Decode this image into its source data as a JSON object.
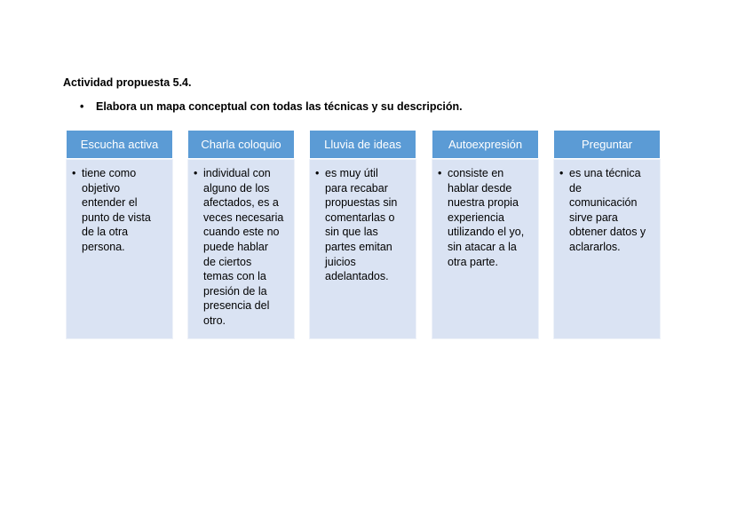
{
  "title": "Actividad propuesta 5.4.",
  "instruction": "Elabora un mapa conceptual con todas las técnicas y su descripción.",
  "columns": [
    {
      "header": "Escucha activa",
      "lines": [
        "tiene como",
        "objetivo",
        "entender el",
        "punto de vista",
        "de la otra",
        "persona."
      ]
    },
    {
      "header": "Charla coloquio",
      "lines": [
        "individual con",
        "alguno de los",
        "afectados, es a",
        "veces necesaria",
        "cuando este no",
        "puede hablar",
        "de ciertos",
        "temas con la",
        "presión de la",
        "presencia del",
        "otro."
      ]
    },
    {
      "header": "Lluvia de ideas",
      "lines": [
        "es muy útil",
        "para recabar",
        "propuestas sin",
        "comentarlas o",
        "sin que las",
        "partes emitan",
        "juicios",
        "adelantados."
      ]
    },
    {
      "header": "Autoexpresión",
      "lines": [
        "consiste en",
        "hablar desde",
        "nuestra propia",
        "experiencia",
        "utilizando el yo,",
        "sin atacar a la",
        "otra parte."
      ]
    },
    {
      "header": "Preguntar",
      "lines": [
        "es una técnica",
        "de",
        "comunicación",
        "sirve para",
        "obtener datos y",
        "aclararlos."
      ]
    }
  ],
  "colors": {
    "header": "#5b9bd5",
    "body": "#dae3f3"
  }
}
